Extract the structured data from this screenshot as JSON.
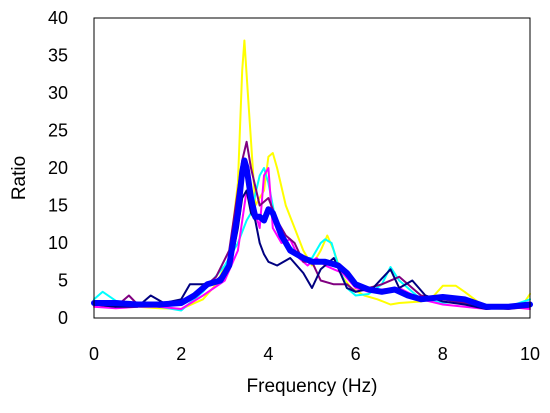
{
  "chart_data": {
    "type": "line",
    "title": "",
    "xlabel": "Frequency (Hz)",
    "ylabel": "Ratio",
    "xlim": [
      0,
      10
    ],
    "ylim": [
      0,
      40
    ],
    "xticks": [
      0,
      2,
      4,
      6,
      8,
      10
    ],
    "yticks": [
      0,
      5,
      10,
      15,
      20,
      25,
      30,
      35,
      40
    ],
    "grid": false,
    "legend": "none",
    "series": [
      {
        "color": "#ffff00",
        "width": 2,
        "x": [
          0,
          0.5,
          1,
          1.5,
          2,
          2.5,
          2.8,
          3.1,
          3.3,
          3.4,
          3.45,
          3.55,
          3.7,
          3.9,
          4.0,
          4.1,
          4.2,
          4.4,
          4.6,
          4.8,
          5.0,
          5.2,
          5.35,
          5.5,
          5.7,
          5.9,
          6.2,
          6.5,
          6.8,
          7.0,
          7.5,
          7.8,
          8.0,
          8.3,
          8.5,
          9.0,
          9.5,
          9.8,
          10
        ],
        "y": [
          1.8,
          1.5,
          1.5,
          1.3,
          1.2,
          2.5,
          4.5,
          8,
          18,
          33,
          37,
          28,
          15,
          17,
          21.5,
          22,
          20,
          15,
          12,
          9,
          7,
          9,
          11,
          9,
          5.5,
          4,
          3,
          2.5,
          1.8,
          2,
          2.2,
          3,
          4.3,
          4.3,
          3.5,
          1.3,
          1.2,
          1.5,
          3.2
        ]
      },
      {
        "color": "#00ffff",
        "width": 2,
        "x": [
          0,
          0.2,
          0.5,
          1,
          1.5,
          2,
          2.5,
          3,
          3.3,
          3.5,
          3.6,
          3.8,
          3.9,
          4.0,
          4.2,
          4.4,
          4.6,
          4.8,
          5.0,
          5.2,
          5.3,
          5.45,
          5.6,
          5.8,
          6.0,
          6.3,
          6.6,
          6.8,
          7.0,
          7.5,
          8.0,
          8.5,
          9.0,
          9.5,
          10
        ],
        "y": [
          2.5,
          3.5,
          2.3,
          1.8,
          1.5,
          1.0,
          3.5,
          7,
          10,
          13,
          14,
          19,
          20,
          18,
          12,
          10,
          9,
          8,
          8,
          10,
          10.5,
          10,
          7,
          4,
          3,
          3.2,
          4.5,
          6.8,
          5,
          2.5,
          2.0,
          2.3,
          1.5,
          1.5,
          2.5
        ]
      },
      {
        "color": "#ff00ff",
        "width": 2,
        "x": [
          0,
          0.5,
          1,
          1.5,
          2,
          2.5,
          3,
          3.3,
          3.5,
          3.7,
          3.8,
          3.9,
          4.0,
          4.1,
          4.3,
          4.5,
          4.7,
          4.9,
          5.1,
          5.3,
          5.5,
          5.7,
          6.0,
          6.3,
          6.6,
          7.0,
          7.5,
          8.0,
          8.5,
          9.0,
          9.5,
          10
        ],
        "y": [
          1.5,
          1.3,
          1.5,
          1.5,
          1.2,
          3.0,
          5.0,
          9.0,
          17,
          14,
          12,
          19,
          20,
          12,
          10,
          10.5,
          8,
          7,
          8,
          7,
          6.5,
          6,
          4,
          3.5,
          3.8,
          4.0,
          2.5,
          1.8,
          1.5,
          1.2,
          1.5,
          1.2
        ]
      },
      {
        "color": "#800080",
        "width": 2,
        "x": [
          0,
          0.5,
          0.8,
          1.0,
          1.5,
          2.0,
          2.5,
          2.8,
          3.1,
          3.3,
          3.4,
          3.5,
          3.6,
          3.8,
          4.0,
          4.2,
          4.4,
          4.6,
          4.8,
          5.0,
          5.2,
          5.5,
          5.8,
          6.0,
          6.3,
          6.6,
          7.0,
          7.5,
          8.0,
          8.5,
          9.0,
          9.5,
          10
        ],
        "y": [
          1.8,
          1.5,
          3.0,
          1.8,
          1.5,
          2.0,
          4.0,
          5.5,
          9.0,
          17,
          21,
          23.5,
          20,
          15,
          16,
          13,
          11,
          10,
          7.5,
          7.5,
          5.0,
          4.5,
          4.5,
          3.5,
          4.0,
          4.5,
          5.5,
          3.0,
          2.5,
          2.0,
          1.5,
          1.2,
          1.5
        ]
      },
      {
        "color": "#000080",
        "width": 2,
        "x": [
          0,
          0.5,
          1.0,
          1.3,
          1.6,
          2.0,
          2.2,
          2.5,
          2.8,
          3.0,
          3.2,
          3.3,
          3.4,
          3.5,
          3.6,
          3.7,
          3.8,
          3.9,
          4.0,
          4.2,
          4.5,
          4.8,
          5.0,
          5.2,
          5.5,
          5.8,
          6.0,
          6.4,
          6.8,
          7.0,
          7.3,
          7.6,
          8.0,
          8.5,
          9.0,
          9.5,
          10
        ],
        "y": [
          1.8,
          1.5,
          1.5,
          3.0,
          2.0,
          2.5,
          4.5,
          4.5,
          5.0,
          6.0,
          9.0,
          12,
          16,
          17,
          14,
          13,
          10,
          8.5,
          7.5,
          7.0,
          8.0,
          6.0,
          4.0,
          6.5,
          8.0,
          4.0,
          3.5,
          4.0,
          6.5,
          4.0,
          5.0,
          3.0,
          2.2,
          1.8,
          1.2,
          1.5,
          1.8
        ]
      },
      {
        "color": "#0000ff",
        "width": 6,
        "x": [
          0,
          0.5,
          1.0,
          1.5,
          2.0,
          2.3,
          2.6,
          2.9,
          3.1,
          3.3,
          3.4,
          3.45,
          3.5,
          3.6,
          3.7,
          3.8,
          3.9,
          4.0,
          4.1,
          4.3,
          4.5,
          4.8,
          5.0,
          5.3,
          5.6,
          5.8,
          6.0,
          6.3,
          6.6,
          6.9,
          7.2,
          7.5,
          8.0,
          8.5,
          9.0,
          9.5,
          10
        ],
        "y": [
          2.0,
          2.0,
          1.8,
          1.8,
          2.0,
          3.0,
          4.5,
          5.0,
          7.0,
          14,
          19.5,
          21,
          20,
          16,
          13.5,
          13.5,
          13,
          14.5,
          14,
          11,
          9.0,
          8.0,
          7.5,
          7.5,
          7.0,
          6.0,
          4.5,
          3.8,
          3.5,
          3.8,
          3.0,
          2.5,
          2.8,
          2.5,
          1.5,
          1.5,
          1.8
        ]
      }
    ]
  }
}
